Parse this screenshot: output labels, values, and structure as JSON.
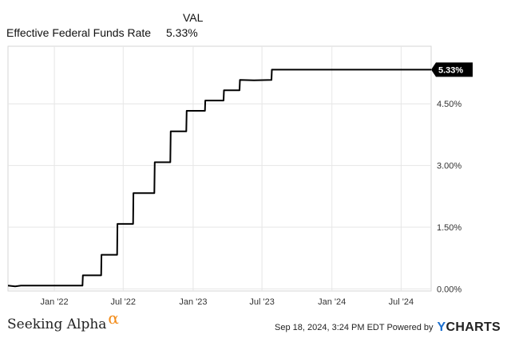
{
  "legend": {
    "column_header": "VAL",
    "series_name": "Effective Federal Funds Rate",
    "series_value": "5.33%"
  },
  "chart_data": {
    "type": "line",
    "series": [
      {
        "name": "Effective Federal Funds Rate",
        "color": "#000000",
        "points": [
          [
            "2021-09-01",
            0.08
          ],
          [
            "2021-09-20",
            0.06
          ],
          [
            "2021-10-05",
            0.08
          ],
          [
            "2022-03-16",
            0.08
          ],
          [
            "2022-03-17",
            0.33
          ],
          [
            "2022-05-04",
            0.33
          ],
          [
            "2022-05-05",
            0.83
          ],
          [
            "2022-06-15",
            0.83
          ],
          [
            "2022-06-16",
            1.58
          ],
          [
            "2022-07-27",
            1.58
          ],
          [
            "2022-07-28",
            2.33
          ],
          [
            "2022-09-21",
            2.33
          ],
          [
            "2022-09-22",
            3.08
          ],
          [
            "2022-11-02",
            3.08
          ],
          [
            "2022-11-03",
            3.83
          ],
          [
            "2022-12-14",
            3.83
          ],
          [
            "2022-12-15",
            4.33
          ],
          [
            "2023-02-01",
            4.33
          ],
          [
            "2023-02-02",
            4.58
          ],
          [
            "2023-03-22",
            4.58
          ],
          [
            "2023-03-23",
            4.83
          ],
          [
            "2023-05-03",
            4.83
          ],
          [
            "2023-05-04",
            5.08
          ],
          [
            "2023-06-10",
            5.07
          ],
          [
            "2023-07-26",
            5.08
          ],
          [
            "2023-07-27",
            5.33
          ],
          [
            "2024-09-18",
            5.33
          ]
        ]
      }
    ],
    "x_range": [
      "2021-09-01",
      "2024-09-18"
    ],
    "x_ticks": [
      {
        "date": "2022-01-01",
        "label": "Jan '22"
      },
      {
        "date": "2022-07-01",
        "label": "Jul '22"
      },
      {
        "date": "2023-01-01",
        "label": "Jan '23"
      },
      {
        "date": "2023-07-01",
        "label": "Jul '23"
      },
      {
        "date": "2024-01-01",
        "label": "Jan '24"
      },
      {
        "date": "2024-07-01",
        "label": "Jul '24"
      }
    ],
    "y_ticks": [
      {
        "value": 0,
        "label": "0.00%"
      },
      {
        "value": 1.5,
        "label": "1.50%"
      },
      {
        "value": 3,
        "label": "3.00%"
      },
      {
        "value": 4.5,
        "label": "4.50%"
      }
    ],
    "ylim": [
      -0.05,
      5.9
    ],
    "last_value": 5.33,
    "last_value_label": "5.33%",
    "grid": true
  },
  "footer": {
    "brand": "Seeking Alpha",
    "brand_mark": "α",
    "timestamp": "Sep 18, 2024, 3:24 PM EDT Powered by",
    "provider_initial": "Y",
    "provider_rest": "CHARTS"
  }
}
